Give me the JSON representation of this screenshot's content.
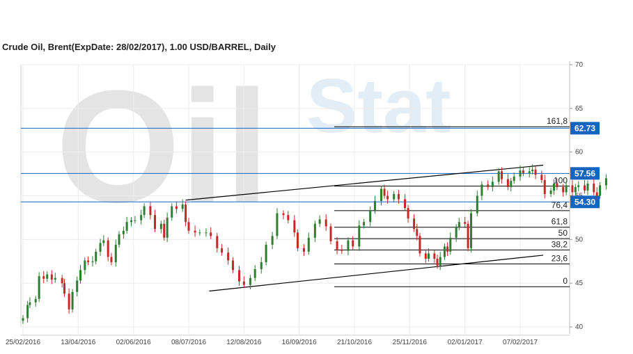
{
  "chart_data": {
    "type": "candlestick",
    "title": "Crude Oil, Brent(ExpDate: 28/02/2017), 1.00 USD/BARREL, Daily",
    "watermark": [
      "Oil",
      "Stat"
    ],
    "ylim": [
      40,
      70
    ],
    "y_ticks": [
      "40",
      "45",
      "50",
      "55",
      "60",
      "65",
      "70"
    ],
    "x_ticks": [
      "25/02/2016",
      "13/04/2016",
      "02/06/2016",
      "08/07/2016",
      "12/08/2016",
      "16/09/2016",
      "21/10/2016",
      "25/11/2016",
      "02/01/2017",
      "07/02/2017"
    ],
    "grid": true,
    "colors": {
      "up": "#2e7d32",
      "down": "#c62828",
      "level": "#1565c0",
      "line": "#000000"
    },
    "price_levels": [
      {
        "value": 62.73,
        "label": "62.73"
      },
      {
        "value": 57.56,
        "label": "57.56"
      },
      {
        "value": 54.3,
        "label": "54.30"
      }
    ],
    "fibonacci": {
      "levels": [
        {
          "label": "161,8",
          "value": 62.9
        },
        {
          "label": "100",
          "value": 56.1
        },
        {
          "label": "76,4",
          "value": 53.3
        },
        {
          "label": "61,8",
          "value": 51.4
        },
        {
          "label": "50",
          "value": 50.1
        },
        {
          "label": "38,2",
          "value": 48.8
        },
        {
          "label": "23,6",
          "value": 47.2
        },
        {
          "label": "0",
          "value": 44.6
        }
      ]
    },
    "trendlines": [
      {
        "from": [
          "06/07/2016",
          54.5
        ],
        "to": [
          "22/02/2017",
          58.5
        ]
      },
      {
        "from": [
          "21/07/2016",
          44.1
        ],
        "to": [
          "22/02/2017",
          48.2
        ]
      }
    ],
    "series_close": [
      [
        "2016-02-25",
        41.0
      ],
      [
        "2016-02-29",
        42.5
      ],
      [
        "2016-03-02",
        42.8
      ],
      [
        "2016-03-07",
        43.2
      ],
      [
        "2016-03-10",
        45.8
      ],
      [
        "2016-03-14",
        45.5
      ],
      [
        "2016-03-17",
        46.0
      ],
      [
        "2016-03-21",
        45.4
      ],
      [
        "2016-03-24",
        45.6
      ],
      [
        "2016-03-30",
        45.0
      ],
      [
        "2016-04-01",
        43.8
      ],
      [
        "2016-04-05",
        42.0
      ],
      [
        "2016-04-08",
        44.0
      ],
      [
        "2016-04-12",
        45.3
      ],
      [
        "2016-04-15",
        46.5
      ],
      [
        "2016-04-19",
        47.6
      ],
      [
        "2016-04-22",
        47.4
      ],
      [
        "2016-04-26",
        47.5
      ],
      [
        "2016-04-29",
        48.6
      ],
      [
        "2016-05-03",
        49.6
      ],
      [
        "2016-05-06",
        49.9
      ],
      [
        "2016-05-10",
        48.0
      ],
      [
        "2016-05-13",
        47.4
      ],
      [
        "2016-05-17",
        49.4
      ],
      [
        "2016-05-20",
        50.6
      ],
      [
        "2016-05-24",
        51.0
      ],
      [
        "2016-05-27",
        52.0
      ],
      [
        "2016-05-31",
        52.2
      ],
      [
        "2016-06-03",
        52.2
      ],
      [
        "2016-06-07",
        52.8
      ],
      [
        "2016-06-09",
        53.8
      ],
      [
        "2016-06-13",
        52.8
      ],
      [
        "2016-06-16",
        51.2
      ],
      [
        "2016-06-20",
        51.8
      ],
      [
        "2016-06-22",
        50.2
      ],
      [
        "2016-06-24",
        52.5
      ],
      [
        "2016-06-27",
        53.8
      ],
      [
        "2016-06-30",
        53.5
      ],
      [
        "2016-07-04",
        54.0
      ],
      [
        "2016-07-06",
        52.0
      ],
      [
        "2016-07-08",
        51.0
      ],
      [
        "2016-07-12",
        50.8
      ],
      [
        "2016-07-15",
        50.8
      ],
      [
        "2016-07-19",
        50.8
      ],
      [
        "2016-07-22",
        50.4
      ],
      [
        "2016-07-26",
        49.0
      ],
      [
        "2016-07-29",
        48.5
      ],
      [
        "2016-08-02",
        47.6
      ],
      [
        "2016-08-05",
        46.5
      ],
      [
        "2016-08-09",
        45.2
      ],
      [
        "2016-08-12",
        44.8
      ],
      [
        "2016-08-16",
        45.6
      ],
      [
        "2016-08-19",
        46.6
      ],
      [
        "2016-08-23",
        47.4
      ],
      [
        "2016-08-26",
        49.4
      ],
      [
        "2016-08-30",
        50.4
      ],
      [
        "2016-09-02",
        53.0
      ],
      [
        "2016-09-06",
        52.8
      ],
      [
        "2016-09-09",
        52.2
      ],
      [
        "2016-09-13",
        50.8
      ],
      [
        "2016-09-15",
        49.0
      ],
      [
        "2016-09-19",
        48.6
      ],
      [
        "2016-09-22",
        50.2
      ],
      [
        "2016-09-26",
        51.8
      ],
      [
        "2016-09-29",
        52.3
      ],
      [
        "2016-10-03",
        51.5
      ],
      [
        "2016-10-06",
        49.8
      ],
      [
        "2016-10-10",
        48.8
      ],
      [
        "2016-10-13",
        48.7
      ],
      [
        "2016-10-17",
        49.9
      ],
      [
        "2016-10-20",
        49.2
      ],
      [
        "2016-10-24",
        51.6
      ],
      [
        "2016-10-27",
        52.0
      ],
      [
        "2016-10-31",
        53.3
      ],
      [
        "2016-11-03",
        54.4
      ],
      [
        "2016-11-07",
        55.8
      ],
      [
        "2016-11-09",
        55.0
      ],
      [
        "2016-11-11",
        54.6
      ],
      [
        "2016-11-15",
        55.2
      ],
      [
        "2016-11-18",
        54.6
      ],
      [
        "2016-11-22",
        53.6
      ],
      [
        "2016-11-24",
        52.4
      ],
      [
        "2016-11-28",
        51.2
      ],
      [
        "2016-11-30",
        50.4
      ],
      [
        "2016-12-02",
        48.4
      ],
      [
        "2016-12-06",
        47.8
      ],
      [
        "2016-12-08",
        48.4
      ],
      [
        "2016-12-12",
        47.8
      ],
      [
        "2016-12-14",
        47.0
      ],
      [
        "2016-12-16",
        48.0
      ],
      [
        "2016-12-19",
        49.2
      ],
      [
        "2016-12-21",
        48.6
      ],
      [
        "2016-12-23",
        50.2
      ],
      [
        "2016-12-27",
        51.4
      ],
      [
        "2016-12-29",
        52.0
      ],
      [
        "2017-01-02",
        51.8
      ],
      [
        "2017-01-04",
        49.0
      ],
      [
        "2017-01-06",
        53.0
      ],
      [
        "2017-01-10",
        55.0
      ],
      [
        "2017-01-13",
        56.3
      ],
      [
        "2017-01-17",
        56.0
      ],
      [
        "2017-01-20",
        56.6
      ],
      [
        "2017-01-24",
        57.8
      ],
      [
        "2017-01-26",
        56.9
      ],
      [
        "2017-01-30",
        56.0
      ],
      [
        "2017-02-01",
        56.7
      ],
      [
        "2017-02-03",
        57.2
      ],
      [
        "2017-02-07",
        57.9
      ],
      [
        "2017-02-09",
        57.6
      ],
      [
        "2017-02-13",
        57.8
      ],
      [
        "2017-02-15",
        58.0
      ],
      [
        "2017-02-17",
        57.4
      ],
      [
        "2017-02-21",
        56.8
      ],
      [
        "2017-02-23",
        55.2
      ],
      [
        "2017-02-27",
        55.6
      ],
      [
        "2017-03-01",
        56.4
      ],
      [
        "2017-03-03",
        56.0
      ],
      [
        "2017-03-07",
        55.4
      ],
      [
        "2017-03-09",
        56.2
      ],
      [
        "2017-03-13",
        55.4
      ],
      [
        "2017-03-15",
        56.0
      ],
      [
        "2017-03-17",
        56.2
      ],
      [
        "2017-03-21",
        55.6
      ],
      [
        "2017-03-23",
        56.4
      ],
      [
        "2017-03-27",
        55.4
      ],
      [
        "2017-03-29",
        55.0
      ],
      [
        "2017-03-31",
        56.2
      ],
      [
        "2017-04-04",
        57.0
      ]
    ]
  }
}
